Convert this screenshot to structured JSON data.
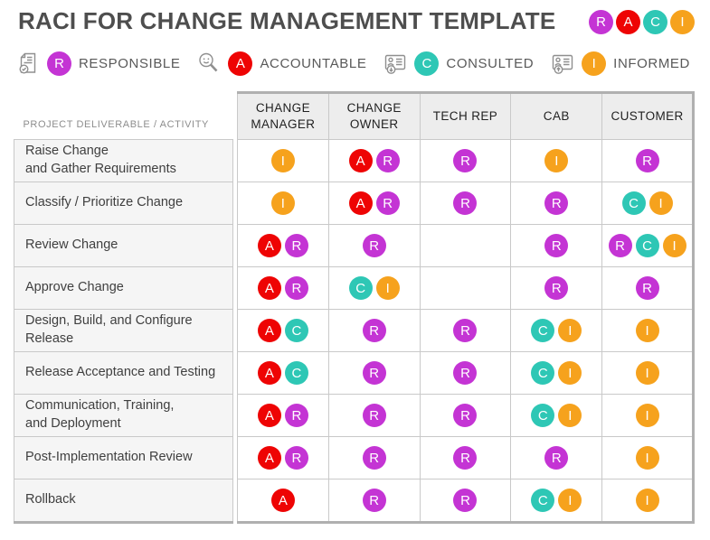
{
  "title": "RACI FOR CHANGE MANAGEMENT TEMPLATE",
  "colors": {
    "R": "#C434D4",
    "A": "#EE0404",
    "C": "#2EC7B5",
    "I": "#F6A21D"
  },
  "logo": {
    "letters": [
      "R",
      "A",
      "C",
      "I"
    ]
  },
  "legend": [
    {
      "icon": "doc-check-icon",
      "letter": "R",
      "label": "RESPONSIBLE"
    },
    {
      "icon": "magnifier-person-icon",
      "letter": "A",
      "label": "ACCOUNTABLE"
    },
    {
      "icon": "card-arrow-down-icon",
      "letter": "C",
      "label": "CONSULTED"
    },
    {
      "icon": "card-arrow-up-icon",
      "letter": "I",
      "label": "INFORMED"
    }
  ],
  "table": {
    "corner_label": "PROJECT DELIVERABLE / ACTIVITY",
    "columns": [
      "CHANGE MANAGER",
      "CHANGE OWNER",
      "TECH REP",
      "CAB",
      "CUSTOMER"
    ],
    "rows": [
      {
        "activity": "Raise Change\nand Gather Requirements",
        "cells": [
          [
            "I"
          ],
          [
            "A",
            "R"
          ],
          [
            "R"
          ],
          [
            "I"
          ],
          [
            "R"
          ]
        ]
      },
      {
        "activity": "Classify / Prioritize Change",
        "cells": [
          [
            "I"
          ],
          [
            "A",
            "R"
          ],
          [
            "R"
          ],
          [
            "R"
          ],
          [
            "C",
            "I"
          ]
        ]
      },
      {
        "activity": "Review Change",
        "cells": [
          [
            "A",
            "R"
          ],
          [
            "R"
          ],
          [],
          [
            "R"
          ],
          [
            "R",
            "C",
            "I"
          ]
        ]
      },
      {
        "activity": "Approve Change",
        "cells": [
          [
            "A",
            "R"
          ],
          [
            "C",
            "I"
          ],
          [],
          [
            "R"
          ],
          [
            "R"
          ]
        ]
      },
      {
        "activity": "Design, Build, and Configure\nRelease",
        "cells": [
          [
            "A",
            "C"
          ],
          [
            "R"
          ],
          [
            "R"
          ],
          [
            "C",
            "I"
          ],
          [
            "I"
          ]
        ]
      },
      {
        "activity": "Release Acceptance and Testing",
        "cells": [
          [
            "A",
            "C"
          ],
          [
            "R"
          ],
          [
            "R"
          ],
          [
            "C",
            "I"
          ],
          [
            "I"
          ]
        ]
      },
      {
        "activity": "Communication, Training,\nand Deployment",
        "cells": [
          [
            "A",
            "R"
          ],
          [
            "R"
          ],
          [
            "R"
          ],
          [
            "C",
            "I"
          ],
          [
            "I"
          ]
        ]
      },
      {
        "activity": "Post-Implementation Review",
        "cells": [
          [
            "A",
            "R"
          ],
          [
            "R"
          ],
          [
            "R"
          ],
          [
            "R"
          ],
          [
            "I"
          ]
        ]
      },
      {
        "activity": "Rollback",
        "cells": [
          [
            "A"
          ],
          [
            "R"
          ],
          [
            "R"
          ],
          [
            "C",
            "I"
          ],
          [
            "I"
          ]
        ]
      }
    ]
  }
}
